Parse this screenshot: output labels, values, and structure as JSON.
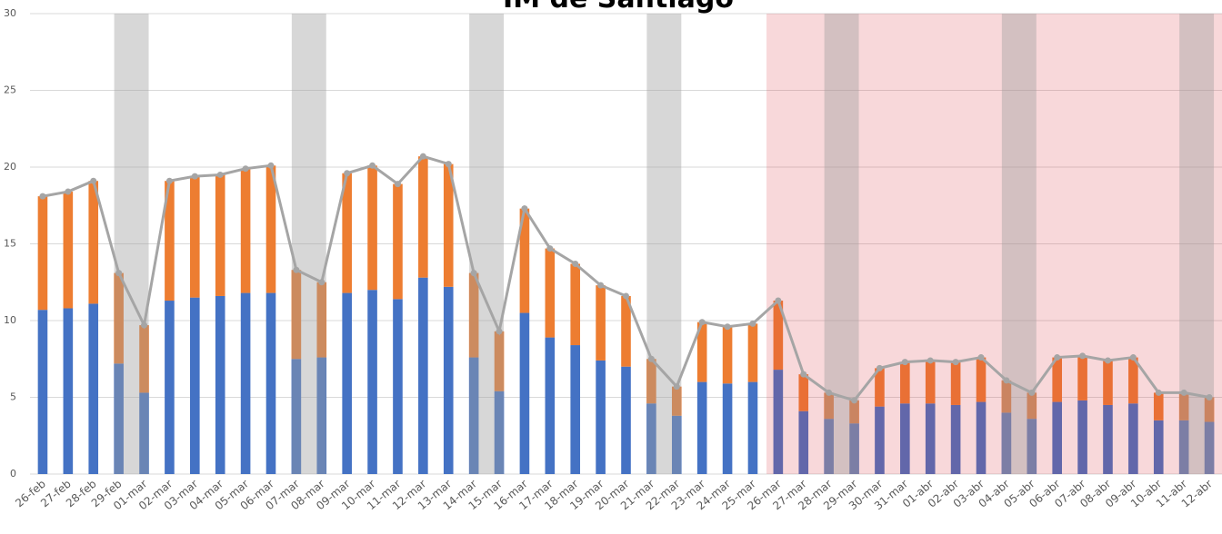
{
  "chart_data": {
    "type": "bar",
    "title": "IM de Santiago",
    "categories": [
      "26-feb",
      "27-feb",
      "28-feb",
      "29-feb",
      "01-mar",
      "02-mar",
      "03-mar",
      "04-mar",
      "05-mar",
      "06-mar",
      "07-mar",
      "08-mar",
      "09-mar",
      "10-mar",
      "11-mar",
      "12-mar",
      "13-mar",
      "14-mar",
      "15-mar",
      "16-mar",
      "17-mar",
      "18-mar",
      "19-mar",
      "20-mar",
      "21-mar",
      "22-mar",
      "23-mar",
      "24-mar",
      "25-mar",
      "26-mar",
      "27-mar",
      "28-mar",
      "29-mar",
      "30-mar",
      "31-mar",
      "01-abr",
      "02-abr",
      "03-abr",
      "04-abr",
      "05-abr",
      "06-abr",
      "07-abr",
      "08-abr",
      "09-abr",
      "10-abr",
      "11-abr",
      "12-abr"
    ],
    "series": [
      {
        "type": "bar",
        "color": "#4472c4",
        "values": [
          10.7,
          10.8,
          11.1,
          7.2,
          5.3,
          11.3,
          11.5,
          11.6,
          11.8,
          11.8,
          7.5,
          7.6,
          11.8,
          12.0,
          11.4,
          12.8,
          12.2,
          7.6,
          5.4,
          10.5,
          8.9,
          8.4,
          7.4,
          7.0,
          4.6,
          3.8,
          6.0,
          5.9,
          6.0,
          6.8,
          4.1,
          3.6,
          3.3,
          4.4,
          4.6,
          4.6,
          4.5,
          4.7,
          4.0,
          3.6,
          4.7,
          4.8,
          4.5,
          4.6,
          3.5,
          3.5,
          3.4
        ]
      },
      {
        "type": "bar",
        "color": "#ed7d31",
        "values": [
          7.4,
          7.6,
          8.0,
          5.9,
          4.4,
          7.8,
          7.9,
          7.9,
          8.1,
          8.3,
          5.8,
          4.9,
          7.8,
          8.1,
          7.5,
          7.9,
          8.0,
          5.5,
          3.9,
          6.8,
          5.8,
          5.3,
          4.9,
          4.6,
          2.9,
          1.9,
          3.9,
          3.7,
          3.8,
          4.5,
          2.4,
          1.7,
          1.5,
          2.5,
          2.7,
          2.8,
          2.8,
          2.9,
          2.1,
          1.7,
          2.9,
          2.9,
          2.9,
          3.0,
          1.8,
          1.8,
          1.6
        ]
      },
      {
        "type": "line",
        "color": "#a5a5a5",
        "values": [
          18.1,
          18.4,
          19.1,
          13.1,
          9.7,
          19.1,
          19.4,
          19.5,
          19.9,
          20.1,
          13.3,
          12.5,
          19.6,
          20.1,
          18.9,
          20.7,
          20.2,
          13.1,
          9.3,
          17.3,
          14.7,
          13.7,
          12.3,
          11.6,
          7.5,
          5.7,
          9.9,
          9.6,
          9.8,
          11.3,
          6.5,
          5.3,
          4.8,
          6.9,
          7.3,
          7.4,
          7.3,
          7.6,
          6.1,
          5.3,
          7.6,
          7.7,
          7.4,
          7.6,
          5.3,
          5.3,
          5.0
        ]
      }
    ],
    "bands": [
      {
        "from": "26-mar",
        "to": "12-abr",
        "color": "rgba(220,60,70,0.2)"
      },
      {
        "from": "29-feb",
        "to": "01-mar",
        "color": "rgba(160,160,160,0.42)"
      },
      {
        "from": "07-mar",
        "to": "08-mar",
        "color": "rgba(160,160,160,0.42)"
      },
      {
        "from": "14-mar",
        "to": "15-mar",
        "color": "rgba(160,160,160,0.42)"
      },
      {
        "from": "21-mar",
        "to": "22-mar",
        "color": "rgba(160,160,160,0.42)"
      },
      {
        "from": "28-mar",
        "to": "29-mar",
        "color": "rgba(160,160,160,0.42)"
      },
      {
        "from": "04-abr",
        "to": "05-abr",
        "color": "rgba(160,160,160,0.42)"
      },
      {
        "from": "11-abr",
        "to": "12-abr",
        "color": "rgba(160,160,160,0.42)"
      }
    ],
    "ylim": [
      0,
      30
    ],
    "yticks": [
      0,
      5,
      10,
      15,
      20,
      25,
      30
    ],
    "grid": true
  }
}
